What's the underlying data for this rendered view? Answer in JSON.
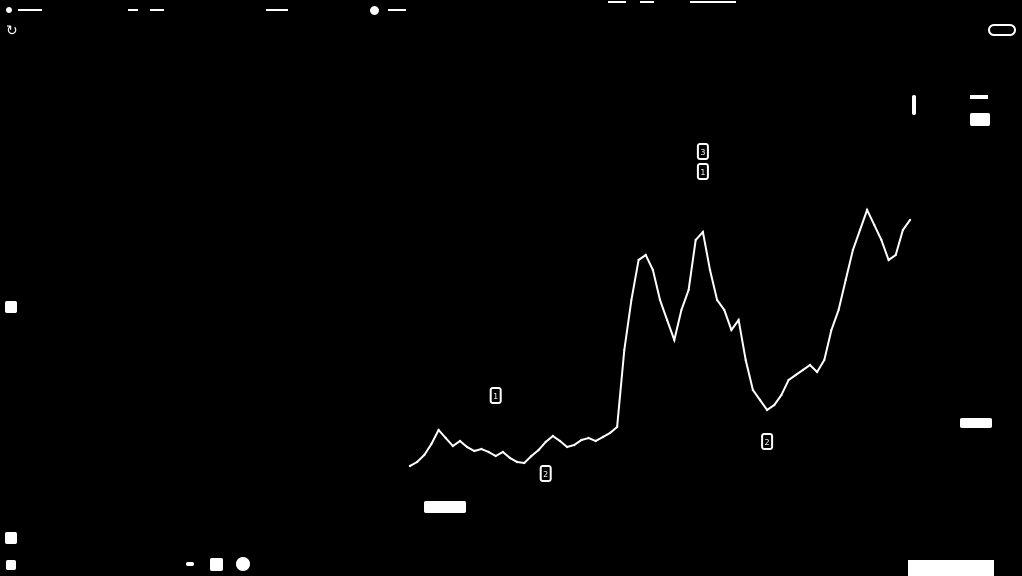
{
  "colors": {
    "background": "#000000",
    "foreground": "#ffffff"
  },
  "toolbar": {
    "refresh_icon": "refresh-icon"
  },
  "chart_data": {
    "type": "line",
    "series": [
      {
        "values": [
          466,
          462,
          455,
          444,
          430,
          438,
          446,
          441,
          447,
          451,
          449,
          452,
          456,
          452,
          458,
          462,
          463,
          456,
          450,
          442,
          436,
          441,
          447,
          445,
          440,
          438,
          441,
          437,
          433,
          427,
          350,
          300,
          260,
          255,
          270,
          300,
          320,
          340,
          310,
          290,
          240,
          232,
          270,
          300,
          310,
          330,
          320,
          360,
          390,
          400,
          410,
          405,
          395,
          380,
          375,
          370,
          365,
          372,
          360,
          330,
          310,
          280,
          250,
          230,
          210,
          225,
          240,
          260,
          255,
          230,
          220
        ]
      }
    ],
    "markers": [
      {
        "label": "1",
        "index": 12
      },
      {
        "label": "2",
        "index": 19
      },
      {
        "label": "1",
        "index": 41
      },
      {
        "label": "3",
        "index": 41
      },
      {
        "label": "2",
        "index": 50
      }
    ],
    "ylim": [
      100,
      500
    ]
  }
}
